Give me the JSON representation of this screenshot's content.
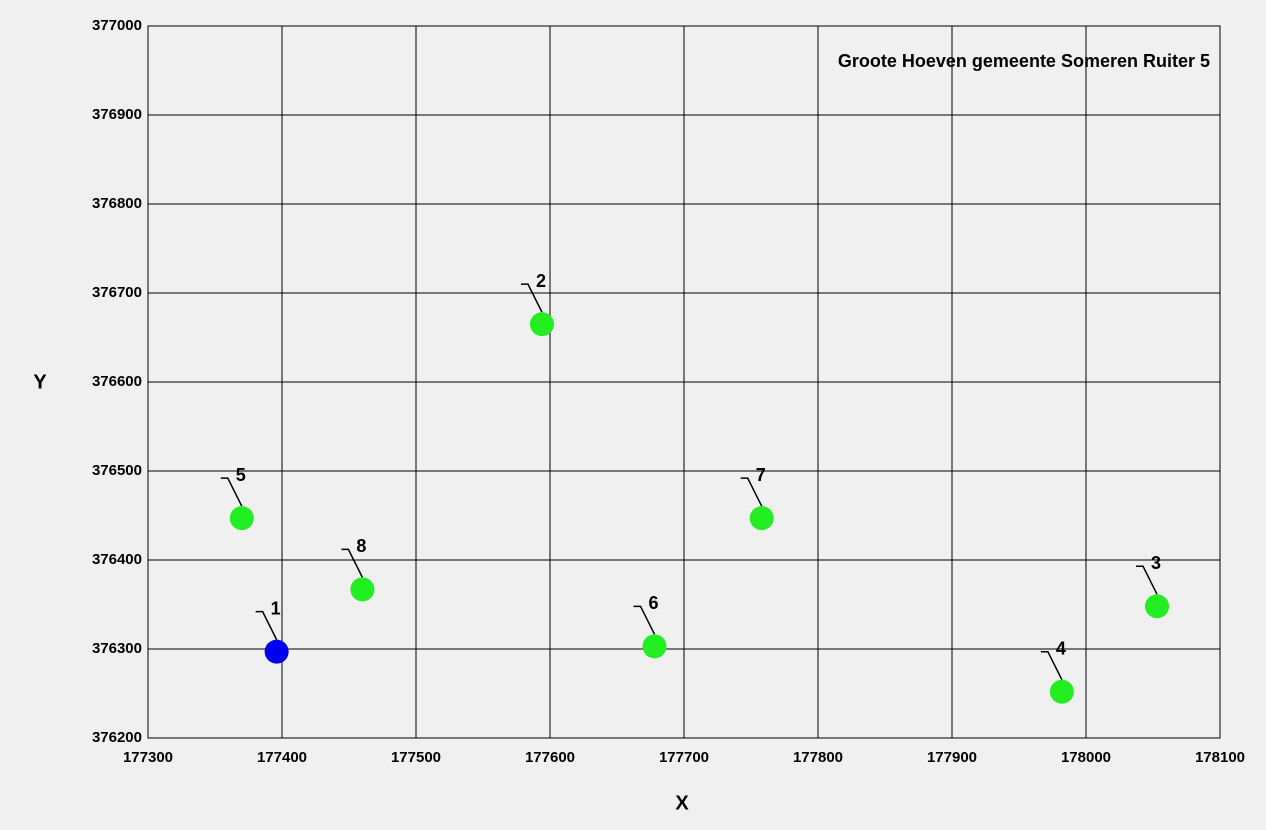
{
  "chart_data": {
    "type": "scatter",
    "title": "Groote Hoeven gemeente Someren Ruiter 5",
    "xlabel": "X",
    "ylabel": "Y",
    "x": [
      177396,
      177594,
      178053,
      177982,
      177370,
      177678,
      177758,
      177460
    ],
    "y": [
      376297,
      376665,
      376348,
      376252,
      376447,
      376303,
      376447,
      376367
    ],
    "point_labels": [
      "1",
      "2",
      "3",
      "4",
      "5",
      "6",
      "7",
      "8"
    ],
    "colors": [
      "#0000ee",
      "#22ee22",
      "#22ee22",
      "#22ee22",
      "#22ee22",
      "#22ee22",
      "#22ee22",
      "#22ee22"
    ],
    "xlim": [
      177300,
      178100
    ],
    "xticks": [
      177300,
      177400,
      177500,
      177600,
      177700,
      177800,
      177900,
      178000,
      178100
    ],
    "ylim": [
      376200,
      377000
    ],
    "yticks": [
      376200,
      376300,
      376400,
      376500,
      376600,
      376700,
      376800,
      376900,
      377000
    ],
    "grid": true
  }
}
